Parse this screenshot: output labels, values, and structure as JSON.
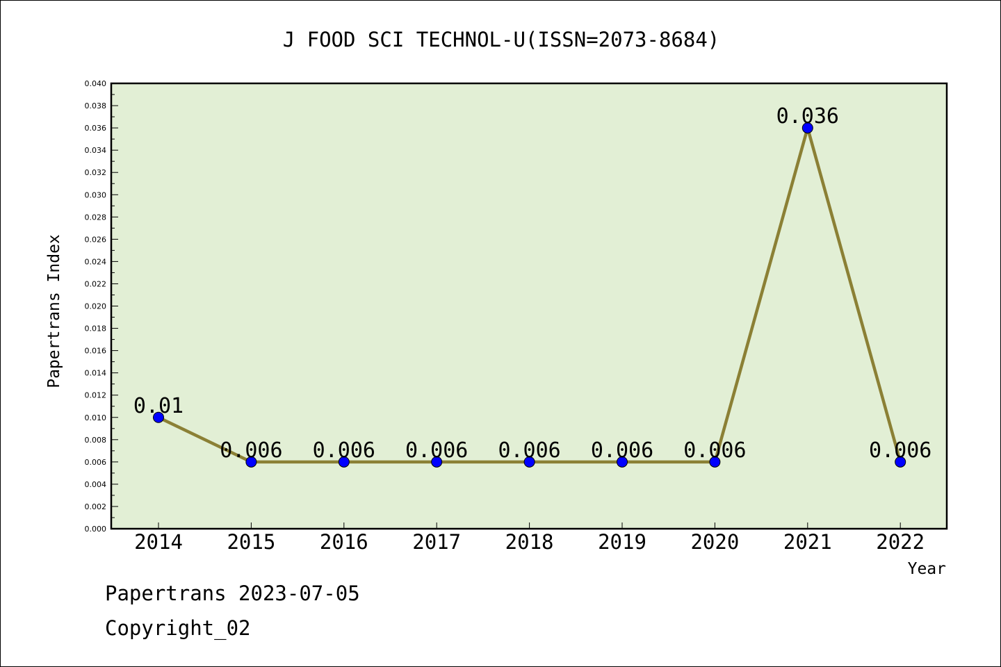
{
  "chart_data": {
    "type": "line",
    "title": "J FOOD SCI TECHNOL-U(ISSN=2073-8684)",
    "xlabel": "Year",
    "ylabel": "Papertrans Index",
    "categories": [
      "2014",
      "2015",
      "2016",
      "2017",
      "2018",
      "2019",
      "2020",
      "2021",
      "2022"
    ],
    "series": [
      {
        "values": [
          0.01,
          0.006,
          0.006,
          0.006,
          0.006,
          0.006,
          0.006,
          0.036,
          0.006
        ],
        "labels": [
          "0.01",
          "0.006",
          "0.006",
          "0.006",
          "0.006",
          "0.006",
          "0.006",
          "0.036",
          "0.006"
        ]
      }
    ],
    "ylim": [
      0,
      0.04
    ],
    "yticks": [
      "0.000",
      "0.002",
      "0.004",
      "0.006",
      "0.008",
      "0.010",
      "0.012",
      "0.014",
      "0.016",
      "0.018",
      "0.020",
      "0.022",
      "0.024",
      "0.026",
      "0.028",
      "0.030",
      "0.032",
      "0.034",
      "0.036",
      "0.038",
      "0.040"
    ],
    "grid": false,
    "legend": "none",
    "colors": {
      "plot_background": "#e2efd5",
      "line": "#8b8035",
      "marker": "#0000ff"
    }
  },
  "footer": {
    "line1": "Papertrans 2023-07-05",
    "line2": "Copyright_02"
  }
}
